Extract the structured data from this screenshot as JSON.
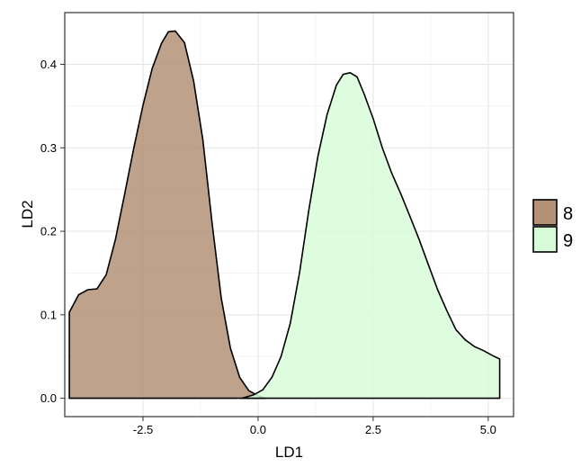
{
  "chart_data": {
    "type": "area",
    "xlabel": "LD1",
    "ylabel": "LD2",
    "xlim": [
      -4.2,
      5.55
    ],
    "ylim": [
      -0.022,
      0.462
    ],
    "x_ticks": [
      -2.5,
      0.0,
      2.5,
      5.0
    ],
    "x_tick_labels": [
      "-2.5",
      "0.0",
      "2.5",
      "5.0"
    ],
    "y_ticks": [
      0.0,
      0.1,
      0.2,
      0.3,
      0.4
    ],
    "y_tick_labels": [
      "0.0",
      "0.1",
      "0.2",
      "0.3",
      "0.4"
    ],
    "grid": true,
    "legend_position": "right",
    "series": [
      {
        "name": "8",
        "color": "#b49278",
        "points": [
          [
            -4.1,
            0.0
          ],
          [
            -4.1,
            0.103
          ],
          [
            -3.9,
            0.124
          ],
          [
            -3.7,
            0.13
          ],
          [
            -3.5,
            0.131
          ],
          [
            -3.3,
            0.148
          ],
          [
            -3.1,
            0.19
          ],
          [
            -2.9,
            0.244
          ],
          [
            -2.7,
            0.3
          ],
          [
            -2.5,
            0.351
          ],
          [
            -2.3,
            0.395
          ],
          [
            -2.1,
            0.425
          ],
          [
            -1.95,
            0.439
          ],
          [
            -1.8,
            0.44
          ],
          [
            -1.6,
            0.426
          ],
          [
            -1.4,
            0.38
          ],
          [
            -1.2,
            0.31
          ],
          [
            -1.0,
            0.21
          ],
          [
            -0.8,
            0.12
          ],
          [
            -0.6,
            0.06
          ],
          [
            -0.4,
            0.025
          ],
          [
            -0.2,
            0.009
          ],
          [
            0.0,
            0.003
          ],
          [
            0.15,
            0.0
          ]
        ]
      },
      {
        "name": "9",
        "color": "#d8fbd8",
        "points": [
          [
            -0.35,
            0.0
          ],
          [
            -0.1,
            0.004
          ],
          [
            0.1,
            0.01
          ],
          [
            0.3,
            0.025
          ],
          [
            0.5,
            0.05
          ],
          [
            0.7,
            0.09
          ],
          [
            0.9,
            0.15
          ],
          [
            1.1,
            0.225
          ],
          [
            1.3,
            0.29
          ],
          [
            1.5,
            0.34
          ],
          [
            1.7,
            0.375
          ],
          [
            1.85,
            0.388
          ],
          [
            2.0,
            0.39
          ],
          [
            2.15,
            0.385
          ],
          [
            2.3,
            0.365
          ],
          [
            2.5,
            0.335
          ],
          [
            2.7,
            0.3
          ],
          [
            2.9,
            0.27
          ],
          [
            3.1,
            0.245
          ],
          [
            3.3,
            0.218
          ],
          [
            3.5,
            0.19
          ],
          [
            3.7,
            0.16
          ],
          [
            3.9,
            0.13
          ],
          [
            4.1,
            0.105
          ],
          [
            4.3,
            0.082
          ],
          [
            4.5,
            0.07
          ],
          [
            4.7,
            0.062
          ],
          [
            4.9,
            0.057
          ],
          [
            5.1,
            0.051
          ],
          [
            5.25,
            0.047
          ],
          [
            5.25,
            0.0
          ]
        ]
      }
    ]
  },
  "legend": {
    "items": [
      {
        "label": "8",
        "color": "#b49278"
      },
      {
        "label": "9",
        "color": "#d8fbd8"
      }
    ]
  }
}
